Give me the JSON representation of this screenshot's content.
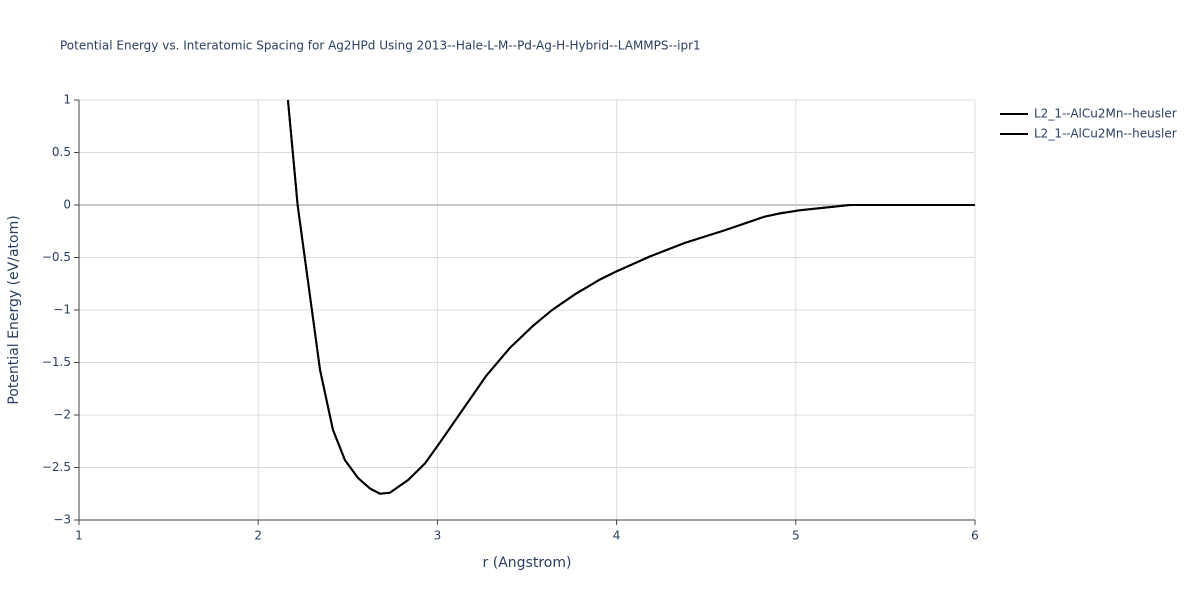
{
  "chart_data": {
    "type": "line",
    "title": "Potential Energy vs. Interatomic Spacing for Ag2HPd Using 2013--Hale-L-M--Pd-Ag-H-Hybrid--LAMMPS--ipr1",
    "x_label": "r (Angstrom)",
    "y_label": "Potential Energy (eV/atom)",
    "x": [
      2.166,
      2.22,
      2.345,
      2.417,
      2.484,
      2.557,
      2.624,
      2.68,
      2.735,
      2.836,
      2.931,
      3.015,
      3.271,
      3.405,
      3.534,
      3.64,
      3.768,
      3.907,
      4.002,
      4.186,
      4.382,
      4.605,
      4.828,
      4.912,
      5.023,
      5.302,
      6.0
    ],
    "series": [
      {
        "name": "L2_1--AlCu2Mn--heusler",
        "color": "#000000",
        "values": [
          1.0,
          0.0,
          -1.57,
          -2.14,
          -2.43,
          -2.6,
          -2.7,
          -2.75,
          -2.74,
          -2.62,
          -2.46,
          -2.26,
          -1.63,
          -1.36,
          -1.15,
          -1.0,
          -0.85,
          -0.71,
          -0.63,
          -0.49,
          -0.36,
          -0.24,
          -0.11,
          -0.08,
          -0.05,
          0.0,
          0.0
        ]
      },
      {
        "name": "L2_1--AlCu2Mn--heusler",
        "color": "#000000",
        "values": [
          1.0,
          0.0,
          -1.57,
          -2.14,
          -2.43,
          -2.6,
          -2.7,
          -2.75,
          -2.74,
          -2.62,
          -2.46,
          -2.26,
          -1.63,
          -1.36,
          -1.15,
          -1.0,
          -0.85,
          -0.71,
          -0.63,
          -0.49,
          -0.36,
          -0.24,
          -0.11,
          -0.08,
          -0.05,
          0.0,
          0.0
        ]
      }
    ],
    "xlim": [
      1,
      6
    ],
    "xticks": [
      1,
      2,
      3,
      4,
      5,
      6
    ],
    "ylim": [
      -3,
      1
    ],
    "yticks": [
      {
        "value": -3,
        "label": "−3"
      },
      {
        "value": -2.5,
        "label": "−2.5"
      },
      {
        "value": -2,
        "label": "−2"
      },
      {
        "value": -1.5,
        "label": "−1.5"
      },
      {
        "value": -1,
        "label": "−1"
      },
      {
        "value": -0.5,
        "label": "−0.5"
      },
      0,
      0.5,
      1
    ],
    "grid": true,
    "legend": "top-right"
  }
}
